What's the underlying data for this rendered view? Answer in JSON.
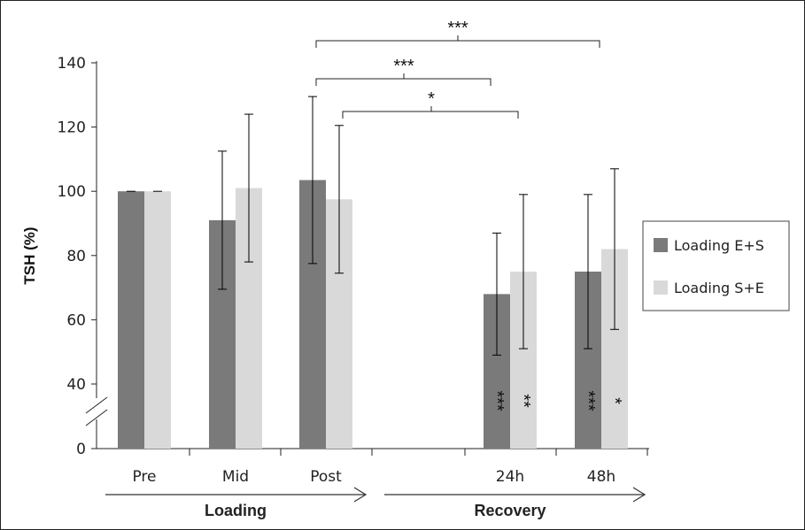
{
  "chart_data": {
    "type": "bar",
    "ylabel": "TSH (%)",
    "yticks": [
      "0",
      "40",
      "60",
      "80",
      "100",
      "120",
      "140"
    ],
    "axis_break": true,
    "categories": [
      "Pre",
      "Mid",
      "Post",
      "24h",
      "48h"
    ],
    "groups": [
      {
        "label": "Loading",
        "categories": [
          "Pre",
          "Mid",
          "Post"
        ]
      },
      {
        "label": "Recovery",
        "categories": [
          "24h",
          "48h"
        ]
      }
    ],
    "series": [
      {
        "name": "Loading E+S",
        "color": "#7a7a7a",
        "values": [
          100,
          91,
          103.5,
          68,
          75
        ],
        "errors": [
          0,
          21.5,
          26,
          19,
          24
        ],
        "marks": [
          "",
          "",
          "",
          "***",
          "***"
        ]
      },
      {
        "name": "Loading S+E",
        "color": "#d9d9d9",
        "values": [
          100,
          101,
          97.5,
          75,
          82
        ],
        "errors": [
          0,
          23,
          23,
          24,
          25
        ],
        "marks": [
          "",
          "",
          "",
          "**",
          "*"
        ]
      }
    ],
    "brackets": [
      {
        "label": "***",
        "from": "Post (Loading E+S)",
        "to": "48h (Loading E+S)"
      },
      {
        "label": "***",
        "from": "Post (Loading E+S)",
        "to": "24h (Loading E+S)"
      },
      {
        "label": "*",
        "from": "Post (Loading S+E)",
        "to": "24h (Loading S+E)"
      }
    ],
    "legend_position": "right"
  }
}
